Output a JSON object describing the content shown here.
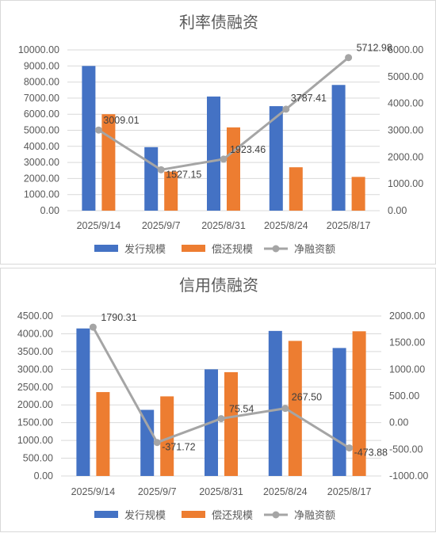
{
  "colors": {
    "issue": "#4472C4",
    "repay": "#ED7D31",
    "net": "#A5A5A5",
    "grid": "#D9D9D9",
    "text": "#595959"
  },
  "chart_data": [
    {
      "type": "bar",
      "title": "利率债融资",
      "categories": [
        "2025/9/14",
        "2025/9/7",
        "2025/8/31",
        "2025/8/24",
        "2025/8/17"
      ],
      "series": [
        {
          "name": "发行规模",
          "axis": "left",
          "values": [
            9000,
            3950,
            7100,
            6500,
            7820
          ]
        },
        {
          "name": "偿还规模",
          "axis": "left",
          "values": [
            6000,
            2430,
            5180,
            2700,
            2100
          ]
        },
        {
          "name": "净融资额",
          "axis": "right",
          "type": "line",
          "values": [
            3009.01,
            1527.15,
            1923.46,
            3787.41,
            5712.98
          ]
        }
      ],
      "data_labels": [
        "3009.01",
        "1527.15",
        "1923.46",
        "3787.41",
        "5712.98"
      ],
      "ylim_left": [
        0,
        10000
      ],
      "ylim_right": [
        0,
        6000
      ],
      "yticks_left": [
        "0.00",
        "1000.00",
        "2000.00",
        "3000.00",
        "4000.00",
        "5000.00",
        "6000.00",
        "7000.00",
        "8000.00",
        "9000.00",
        "10000.00"
      ],
      "yticks_right": [
        "0.00",
        "1000.00",
        "2000.00",
        "3000.00",
        "4000.00",
        "5000.00",
        "6000.00"
      ],
      "legend_position": "bottom",
      "grid": true
    },
    {
      "type": "bar",
      "title": "信用债融资",
      "categories": [
        "2025/9/14",
        "2025/9/7",
        "2025/8/31",
        "2025/8/24",
        "2025/8/17"
      ],
      "series": [
        {
          "name": "发行规模",
          "axis": "left",
          "values": [
            4150,
            1860,
            3000,
            4080,
            3600
          ]
        },
        {
          "name": "偿还规模",
          "axis": "left",
          "values": [
            2360,
            2240,
            2920,
            3800,
            4070
          ]
        },
        {
          "name": "净融资额",
          "axis": "right",
          "type": "line",
          "values": [
            1790.31,
            -371.72,
            75.54,
            267.5,
            -473.88
          ]
        }
      ],
      "data_labels": [
        "1790.31",
        "-371.72",
        "75.54",
        "267.50",
        "-473.88"
      ],
      "ylim_left": [
        0,
        4500
      ],
      "ylim_right": [
        -1000,
        2000
      ],
      "yticks_left": [
        "0.00",
        "500.00",
        "1000.00",
        "1500.00",
        "2000.00",
        "2500.00",
        "3000.00",
        "3500.00",
        "4000.00",
        "4500.00"
      ],
      "yticks_right": [
        "-1000.00",
        "-500.00",
        "0.00",
        "500.00",
        "1000.00",
        "1500.00",
        "2000.00"
      ],
      "legend_position": "bottom",
      "grid": true
    }
  ]
}
